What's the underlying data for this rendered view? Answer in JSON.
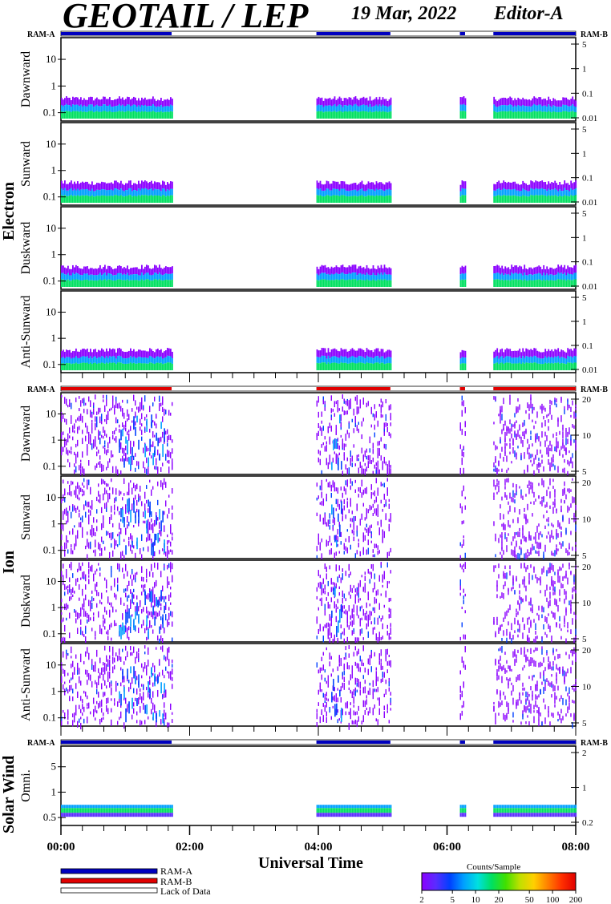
{
  "header": {
    "title": "GEOTAIL / LEP",
    "date": "19 Mar, 2022",
    "editor": "Editor-A"
  },
  "group_labels": {
    "electron": "Electron",
    "ion": "Ion",
    "solar_wind": "Solar Wind"
  },
  "colors": {
    "ram_a": "#0000c0",
    "ram_b": "#e00000",
    "lack_of_data": "#ffffff",
    "colorbar": [
      "#8b00ff",
      "#5a2cff",
      "#0040ff",
      "#00a0ff",
      "#00e0e0",
      "#00e060",
      "#40e000",
      "#c0e000",
      "#ffd000",
      "#ff8000",
      "#ff3000",
      "#e00000"
    ]
  },
  "legend": {
    "ram_a": "RAM-A",
    "ram_b": "RAM-B",
    "lack_of_data": "Lack of Data"
  },
  "colorbar": {
    "title": "Counts/Sample",
    "ticks": [
      "2",
      "5",
      "10",
      "20",
      "50",
      "100",
      "200"
    ]
  },
  "chart_data": {
    "type": "heatmap",
    "xlabel": "Universal Time",
    "x_ticks": [
      "00:00",
      "02:00",
      "04:00",
      "06:00",
      "08:00"
    ],
    "x_range_hours": [
      0,
      8
    ],
    "data_intervals_hours": [
      [
        0.0,
        1.72
      ],
      [
        3.97,
        5.12
      ],
      [
        6.2,
        6.28
      ],
      [
        6.72,
        8.0
      ]
    ],
    "ram_mode_labels": {
      "left": "RAM-A",
      "right": "RAM-B"
    },
    "panels": [
      {
        "group": "Electron",
        "label": "Dawnward",
        "yticks_left": [
          "10",
          "1",
          "0.1"
        ],
        "yticks_right": [
          "5",
          "1",
          "0.1",
          "0.01"
        ],
        "ram_mode": "RAM-A"
      },
      {
        "group": "Electron",
        "label": "Sunward",
        "yticks_left": [
          "10",
          "1",
          "0.1"
        ],
        "yticks_right": [
          "5",
          "1",
          "0.1",
          "0.01"
        ]
      },
      {
        "group": "Electron",
        "label": "Duskward",
        "yticks_left": [
          "10",
          "1",
          "0.1"
        ],
        "yticks_right": [
          "5",
          "1",
          "0.1",
          "0.01"
        ]
      },
      {
        "group": "Electron",
        "label": "Anti-Sunward",
        "yticks_left": [
          "10",
          "1",
          "0.1"
        ],
        "yticks_right": [
          "5",
          "1",
          "0.1",
          "0.01"
        ]
      },
      {
        "group": "Ion",
        "label": "Dawnward",
        "yticks_left": [
          "10",
          "1",
          "0.1"
        ],
        "yticks_right": [
          "20",
          "10",
          "5"
        ],
        "ram_mode": "RAM-B"
      },
      {
        "group": "Ion",
        "label": "Sunward",
        "yticks_left": [
          "10",
          "1",
          "0.1"
        ],
        "yticks_right": [
          "20",
          "10",
          "5"
        ]
      },
      {
        "group": "Ion",
        "label": "Duskward",
        "yticks_left": [
          "10",
          "1",
          "0.1"
        ],
        "yticks_right": [
          "20",
          "10",
          "5"
        ]
      },
      {
        "group": "Ion",
        "label": "Anti-Sunward",
        "yticks_left": [
          "10",
          "1",
          "0.1"
        ],
        "yticks_right": [
          "20",
          "10",
          "5"
        ]
      },
      {
        "group": "Solar Wind",
        "label": "Omni.",
        "yticks_left": [
          "5",
          "1",
          "0.5"
        ],
        "yticks_right": [
          "2",
          "1",
          "0.2"
        ],
        "ram_mode": "RAM-A"
      }
    ]
  }
}
